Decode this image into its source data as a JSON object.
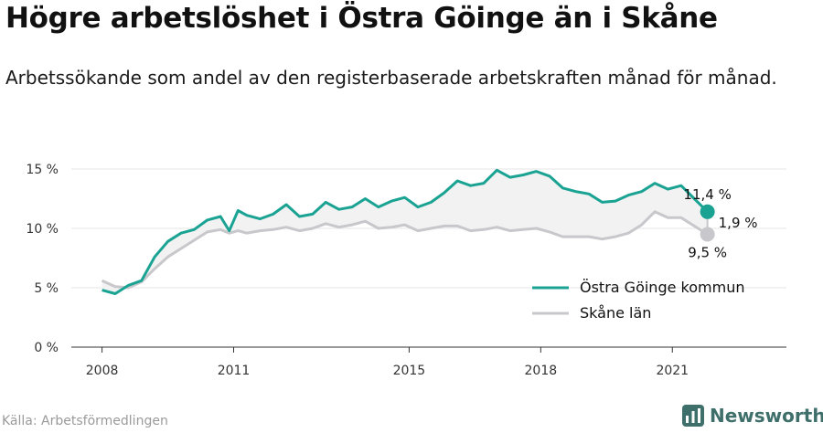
{
  "header": {
    "title": "Högre arbetslöshet i Östra Göinge än i Skåne",
    "subtitle": "Arbetssökande som andel av den registerbaserade arbetskraften månad för månad."
  },
  "footer": {
    "source": "Källa: Arbetsförmedlingen",
    "brand": "Newsworthy"
  },
  "colors": {
    "primary": "#1aa393",
    "secondary": "#c8c8cc",
    "band": "#f2f2f2"
  },
  "chart_data": {
    "type": "line",
    "x_ticks": [
      "2008",
      "2011",
      "2015",
      "2018",
      "2021"
    ],
    "y_ticks": [
      "0 %",
      "5 %",
      "10 %",
      "15 %"
    ],
    "ylim": [
      0,
      15
    ],
    "legend": {
      "position": "bottom-right"
    },
    "annotations": {
      "last_primary": "11,4 %",
      "last_secondary": "9,5 %",
      "difference": "1,9 %"
    },
    "series": [
      {
        "name": "Östra Göinge kommun",
        "points": [
          [
            2008.0,
            4.8
          ],
          [
            2008.3,
            4.5
          ],
          [
            2008.6,
            5.2
          ],
          [
            2008.9,
            5.6
          ],
          [
            2009.2,
            7.6
          ],
          [
            2009.5,
            8.9
          ],
          [
            2009.8,
            9.6
          ],
          [
            2010.1,
            9.9
          ],
          [
            2010.4,
            10.7
          ],
          [
            2010.7,
            11.0
          ],
          [
            2010.9,
            9.8
          ],
          [
            2011.1,
            11.5
          ],
          [
            2011.3,
            11.1
          ],
          [
            2011.6,
            10.8
          ],
          [
            2011.9,
            11.2
          ],
          [
            2012.2,
            12.0
          ],
          [
            2012.5,
            11.0
          ],
          [
            2012.8,
            11.2
          ],
          [
            2013.1,
            12.2
          ],
          [
            2013.4,
            11.6
          ],
          [
            2013.7,
            11.8
          ],
          [
            2014.0,
            12.5
          ],
          [
            2014.3,
            11.8
          ],
          [
            2014.6,
            12.3
          ],
          [
            2014.9,
            12.6
          ],
          [
            2015.2,
            11.8
          ],
          [
            2015.5,
            12.2
          ],
          [
            2015.8,
            13.0
          ],
          [
            2016.1,
            14.0
          ],
          [
            2016.4,
            13.6
          ],
          [
            2016.7,
            13.8
          ],
          [
            2017.0,
            14.9
          ],
          [
            2017.3,
            14.3
          ],
          [
            2017.6,
            14.5
          ],
          [
            2017.9,
            14.8
          ],
          [
            2018.2,
            14.4
          ],
          [
            2018.5,
            13.4
          ],
          [
            2018.8,
            13.1
          ],
          [
            2019.1,
            12.9
          ],
          [
            2019.4,
            12.2
          ],
          [
            2019.7,
            12.3
          ],
          [
            2020.0,
            12.8
          ],
          [
            2020.3,
            13.1
          ],
          [
            2020.6,
            13.8
          ],
          [
            2020.9,
            13.3
          ],
          [
            2021.2,
            13.6
          ],
          [
            2021.5,
            12.5
          ],
          [
            2021.8,
            11.4
          ]
        ]
      },
      {
        "name": "Skåne län",
        "points": [
          [
            2008.0,
            5.6
          ],
          [
            2008.3,
            5.1
          ],
          [
            2008.6,
            5.0
          ],
          [
            2008.9,
            5.5
          ],
          [
            2009.2,
            6.6
          ],
          [
            2009.5,
            7.6
          ],
          [
            2009.8,
            8.3
          ],
          [
            2010.1,
            9.0
          ],
          [
            2010.4,
            9.7
          ],
          [
            2010.7,
            9.9
          ],
          [
            2010.9,
            9.6
          ],
          [
            2011.1,
            9.8
          ],
          [
            2011.3,
            9.6
          ],
          [
            2011.6,
            9.8
          ],
          [
            2011.9,
            9.9
          ],
          [
            2012.2,
            10.1
          ],
          [
            2012.5,
            9.8
          ],
          [
            2012.8,
            10.0
          ],
          [
            2013.1,
            10.4
          ],
          [
            2013.4,
            10.1
          ],
          [
            2013.7,
            10.3
          ],
          [
            2014.0,
            10.6
          ],
          [
            2014.3,
            10.0
          ],
          [
            2014.6,
            10.1
          ],
          [
            2014.9,
            10.3
          ],
          [
            2015.2,
            9.8
          ],
          [
            2015.5,
            10.0
          ],
          [
            2015.8,
            10.2
          ],
          [
            2016.1,
            10.2
          ],
          [
            2016.4,
            9.8
          ],
          [
            2016.7,
            9.9
          ],
          [
            2017.0,
            10.1
          ],
          [
            2017.3,
            9.8
          ],
          [
            2017.6,
            9.9
          ],
          [
            2017.9,
            10.0
          ],
          [
            2018.2,
            9.7
          ],
          [
            2018.5,
            9.3
          ],
          [
            2018.8,
            9.3
          ],
          [
            2019.1,
            9.3
          ],
          [
            2019.4,
            9.1
          ],
          [
            2019.7,
            9.3
          ],
          [
            2020.0,
            9.6
          ],
          [
            2020.3,
            10.3
          ],
          [
            2020.6,
            11.4
          ],
          [
            2020.9,
            10.9
          ],
          [
            2021.2,
            10.9
          ],
          [
            2021.5,
            10.2
          ],
          [
            2021.8,
            9.5
          ]
        ]
      }
    ]
  }
}
